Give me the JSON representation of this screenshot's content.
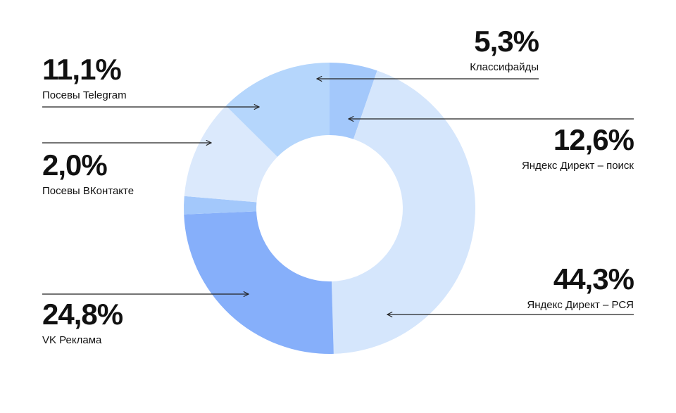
{
  "chart_data": {
    "type": "pie",
    "donut": true,
    "slices": [
      {
        "label": "Классифайды",
        "value": 5.3,
        "display": "5,3%",
        "color": "#a3c8fb"
      },
      {
        "label": "Яндекс Директ – РСЯ",
        "value": 44.3,
        "display": "44,3%",
        "color": "#d5e6fc"
      },
      {
        "label": "VK Реклама",
        "value": 24.8,
        "display": "24,8%",
        "color": "#86affa"
      },
      {
        "label": "Посевы ВКонтакте",
        "value": 2.0,
        "display": "2,0%",
        "color": "#a3c8fb"
      },
      {
        "label": "Посевы Telegram",
        "value": 11.1,
        "display": "11,1%",
        "color": "#dbe9fc"
      },
      {
        "label": "Яндекс Директ – поиск",
        "value": 12.6,
        "display": "12,6%",
        "color": "#b5d6fc"
      }
    ]
  }
}
